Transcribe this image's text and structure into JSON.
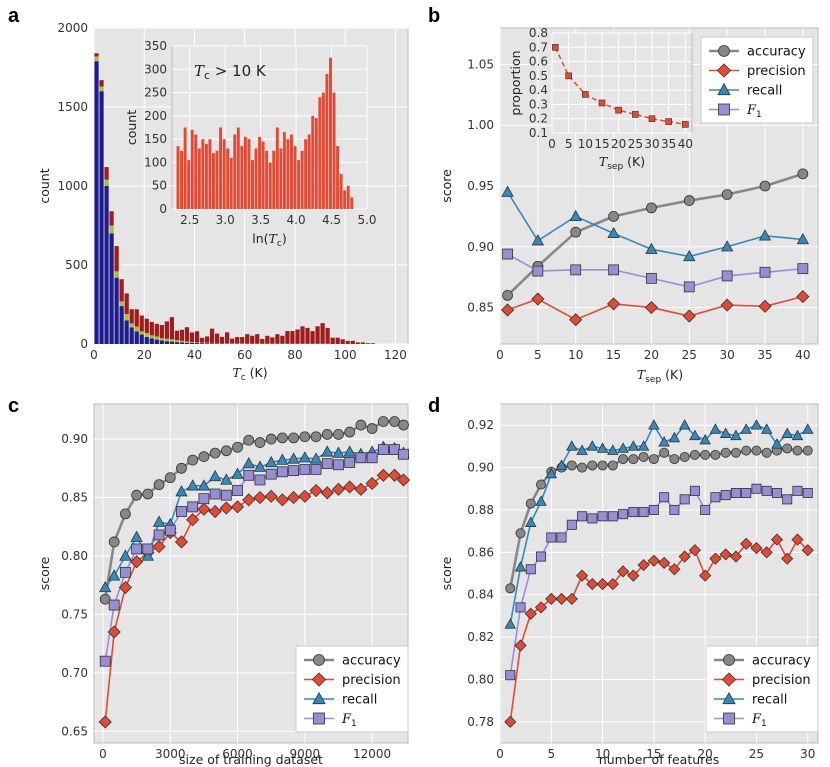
{
  "figure": {
    "panel_labels": [
      "a",
      "b",
      "c",
      "d"
    ]
  },
  "colors": {
    "accuracy": "#878787",
    "precision": "#e24a33",
    "recall": "#348abd",
    "f1": "#988ed5",
    "hist_blue": "#1d1d8f",
    "hist_green": "#a3c339",
    "hist_red": "#a01c1c",
    "inset_hist": "#e24a33",
    "bg": "#e5e5e5"
  },
  "chart_data": [
    {
      "id": "a",
      "type": "bar",
      "stacked": true,
      "xlabel_sym": "T",
      "xlabel_sub": "c",
      "xlabel_unit": " (K)",
      "ylabel": "count",
      "xlim": [
        0,
        125
      ],
      "ylim": [
        0,
        2000
      ],
      "xticks": [
        0,
        20,
        40,
        60,
        80,
        100,
        120
      ],
      "yticks": [
        0,
        500,
        1000,
        1500,
        2000
      ],
      "bin_width": 2,
      "bin_starts": [
        0,
        2,
        4,
        6,
        8,
        10,
        12,
        14,
        16,
        18,
        20,
        22,
        24,
        26,
        28,
        30,
        32,
        34,
        36,
        38,
        40,
        42,
        44,
        46,
        48,
        50,
        52,
        54,
        56,
        58,
        60,
        62,
        64,
        66,
        68,
        70,
        72,
        74,
        76,
        78,
        80,
        82,
        84,
        86,
        88,
        90,
        92,
        94,
        96,
        98,
        100,
        102,
        104,
        106,
        108,
        110
      ],
      "series": [
        {
          "name": "blue",
          "values": [
            1790,
            1600,
            1000,
            700,
            420,
            240,
            150,
            105,
            80,
            60,
            45,
            35,
            28,
            22,
            18,
            15,
            12,
            10,
            8,
            7,
            6,
            5,
            4,
            4,
            3,
            3,
            2,
            2,
            2,
            2,
            1,
            1,
            1,
            1,
            1,
            1,
            1,
            1,
            1,
            1,
            1,
            1,
            1,
            1,
            1,
            1,
            1,
            0,
            0,
            0,
            0,
            0,
            0,
            0,
            0,
            0
          ]
        },
        {
          "name": "green",
          "values": [
            30,
            30,
            40,
            50,
            40,
            30,
            40,
            25,
            30,
            20,
            25,
            20,
            20,
            15,
            15,
            15,
            12,
            10,
            8,
            6,
            5,
            4,
            4,
            3,
            3,
            2,
            2,
            2,
            2,
            2,
            1,
            1,
            1,
            1,
            1,
            1,
            1,
            1,
            1,
            1,
            1,
            1,
            1,
            1,
            1,
            1,
            1,
            0,
            0,
            0,
            0,
            0,
            0,
            0,
            0,
            0
          ]
        },
        {
          "name": "red",
          "values": [
            20,
            40,
            80,
            90,
            160,
            140,
            130,
            90,
            110,
            100,
            90,
            85,
            80,
            83,
            110,
            140,
            60,
            70,
            90,
            60,
            70,
            30,
            40,
            90,
            60,
            40,
            70,
            30,
            40,
            40,
            60,
            50,
            60,
            30,
            50,
            40,
            60,
            50,
            80,
            80,
            90,
            110,
            100,
            80,
            110,
            130,
            100,
            40,
            40,
            30,
            20,
            20,
            10,
            10,
            5,
            5
          ]
        }
      ],
      "inset": {
        "type": "bar",
        "title": "T_c > 10 K",
        "title_sym": "T",
        "title_sub": "c",
        "title_rest": " > 10 K",
        "xlabel": "ln(T_c)",
        "xlabel_pre": "ln(",
        "xlabel_sym": "T",
        "xlabel_sub": "c",
        "xlabel_post": ")",
        "ylabel": "count",
        "xlim": [
          2.25,
          5.0
        ],
        "ylim": [
          0,
          350
        ],
        "xticks": [
          "2.5",
          "3.0",
          "3.5",
          "4.0",
          "4.5",
          "5.0"
        ],
        "yticks": [
          0,
          50,
          100,
          150,
          200,
          250,
          300,
          350
        ],
        "bin_start": 2.31,
        "bin_width": 0.05,
        "values": [
          135,
          125,
          175,
          105,
          170,
          160,
          130,
          150,
          140,
          150,
          120,
          125,
          175,
          150,
          130,
          110,
          160,
          175,
          135,
          155,
          150,
          105,
          130,
          155,
          145,
          125,
          100,
          125,
          175,
          130,
          165,
          150,
          160,
          135,
          105,
          125,
          150,
          160,
          200,
          195,
          240,
          250,
          290,
          325,
          250,
          135,
          75,
          40,
          50,
          25
        ]
      }
    },
    {
      "id": "b",
      "type": "line",
      "xlabel_sym": "T",
      "xlabel_sub": "sep",
      "xlabel_unit": " (K)",
      "ylabel": "score",
      "xlim": [
        0,
        42
      ],
      "ylim": [
        0.82,
        1.08
      ],
      "xticks": [
        0,
        5,
        10,
        15,
        20,
        25,
        30,
        35,
        40
      ],
      "yticks": [
        "0.85",
        "0.90",
        "0.95",
        "1.00",
        "1.05"
      ],
      "x": [
        1,
        5,
        10,
        15,
        20,
        25,
        30,
        35,
        40
      ],
      "series": [
        {
          "name": "accuracy",
          "values": [
            0.86,
            0.884,
            0.912,
            0.925,
            0.932,
            0.938,
            0.943,
            0.95,
            0.96
          ]
        },
        {
          "name": "precision",
          "values": [
            0.848,
            0.857,
            0.84,
            0.853,
            0.85,
            0.843,
            0.852,
            0.851,
            0.859
          ]
        },
        {
          "name": "recall",
          "values": [
            0.945,
            0.905,
            0.925,
            0.911,
            0.898,
            0.892,
            0.9,
            0.909,
            0.906
          ]
        },
        {
          "name": "F1",
          "values": [
            0.894,
            0.88,
            0.881,
            0.881,
            0.874,
            0.867,
            0.876,
            0.879,
            0.882
          ]
        }
      ],
      "legend": [
        "accuracy",
        "precision",
        "recall",
        "F1"
      ],
      "legend_position": "top-right",
      "inset": {
        "type": "line",
        "xlabel_sym": "T",
        "xlabel_sub": "sep",
        "xlabel_unit": " (K)",
        "ylabel": "proportion",
        "xlim": [
          0,
          42
        ],
        "ylim": [
          0.1,
          0.8
        ],
        "xticks": [
          "0",
          "5",
          "10",
          "15",
          "20",
          "25",
          "30",
          "35",
          "40"
        ],
        "yticks": [
          "0.1",
          "0.2",
          "0.3",
          "0.4",
          "0.5",
          "0.6",
          "0.7",
          "0.8"
        ],
        "x": [
          1,
          5,
          10,
          15,
          20,
          25,
          30,
          35,
          40
        ],
        "values": [
          0.7,
          0.5,
          0.37,
          0.31,
          0.26,
          0.23,
          0.2,
          0.18,
          0.16
        ]
      }
    },
    {
      "id": "c",
      "type": "line",
      "xlabel": "size of training dataset",
      "ylabel": "score",
      "xlim": [
        -400,
        13600
      ],
      "ylim": [
        0.64,
        0.93
      ],
      "xticks": [
        "0",
        "3000",
        "6000",
        "9000",
        "12000"
      ],
      "yticks": [
        "0.65",
        "0.70",
        "0.75",
        "0.80",
        "0.85",
        "0.90"
      ],
      "x": [
        100,
        500,
        1000,
        1500,
        2000,
        2500,
        3000,
        3500,
        4000,
        4500,
        5000,
        5500,
        6000,
        6500,
        7000,
        7500,
        8000,
        8500,
        9000,
        9500,
        10000,
        10500,
        11000,
        11500,
        12000,
        12500,
        13000,
        13400
      ],
      "series": [
        {
          "name": "accuracy",
          "values": [
            0.763,
            0.812,
            0.836,
            0.852,
            0.853,
            0.861,
            0.867,
            0.875,
            0.882,
            0.885,
            0.888,
            0.89,
            0.893,
            0.899,
            0.897,
            0.9,
            0.901,
            0.901,
            0.902,
            0.902,
            0.904,
            0.904,
            0.906,
            0.912,
            0.909,
            0.915,
            0.915,
            0.912
          ]
        },
        {
          "name": "precision",
          "values": [
            0.658,
            0.735,
            0.773,
            0.795,
            0.803,
            0.808,
            0.82,
            0.812,
            0.831,
            0.84,
            0.838,
            0.841,
            0.842,
            0.848,
            0.85,
            0.851,
            0.848,
            0.85,
            0.851,
            0.856,
            0.854,
            0.857,
            0.859,
            0.857,
            0.862,
            0.869,
            0.869,
            0.865
          ]
        },
        {
          "name": "recall",
          "values": [
            0.773,
            0.783,
            0.8,
            0.816,
            0.8,
            0.829,
            0.827,
            0.855,
            0.86,
            0.86,
            0.868,
            0.865,
            0.87,
            0.879,
            0.876,
            0.88,
            0.882,
            0.883,
            0.884,
            0.883,
            0.889,
            0.888,
            0.889,
            0.887,
            0.889,
            0.893,
            0.892,
            0.888
          ]
        },
        {
          "name": "F1",
          "values": [
            0.71,
            0.758,
            0.786,
            0.806,
            0.806,
            0.818,
            0.822,
            0.838,
            0.842,
            0.849,
            0.853,
            0.852,
            0.856,
            0.869,
            0.865,
            0.87,
            0.872,
            0.873,
            0.874,
            0.874,
            0.879,
            0.878,
            0.88,
            0.884,
            0.884,
            0.891,
            0.891,
            0.887
          ]
        }
      ],
      "legend": [
        "accuracy",
        "precision",
        "recall",
        "F1"
      ],
      "legend_position": "bottom-right"
    },
    {
      "id": "d",
      "type": "line",
      "xlabel": "number of features",
      "ylabel": "score",
      "xlim": [
        0,
        31
      ],
      "ylim": [
        0.77,
        0.93
      ],
      "xticks": [
        "0",
        "5",
        "10",
        "15",
        "20",
        "25",
        "30"
      ],
      "yticks": [
        "0.78",
        "0.80",
        "0.82",
        "0.84",
        "0.86",
        "0.88",
        "0.90",
        "0.92"
      ],
      "x": [
        1,
        2,
        3,
        4,
        5,
        6,
        7,
        8,
        9,
        10,
        11,
        12,
        13,
        14,
        15,
        16,
        17,
        18,
        19,
        20,
        21,
        22,
        23,
        24,
        25,
        26,
        27,
        28,
        29,
        30
      ],
      "series": [
        {
          "name": "accuracy",
          "values": [
            0.843,
            0.869,
            0.883,
            0.892,
            0.898,
            0.9,
            0.901,
            0.9,
            0.901,
            0.901,
            0.901,
            0.904,
            0.904,
            0.905,
            0.904,
            0.907,
            0.904,
            0.905,
            0.906,
            0.906,
            0.906,
            0.907,
            0.907,
            0.908,
            0.908,
            0.907,
            0.908,
            0.909,
            0.908,
            0.908
          ]
        },
        {
          "name": "precision",
          "values": [
            0.78,
            0.816,
            0.831,
            0.834,
            0.838,
            0.838,
            0.838,
            0.849,
            0.845,
            0.845,
            0.845,
            0.851,
            0.849,
            0.854,
            0.856,
            0.855,
            0.852,
            0.858,
            0.861,
            0.849,
            0.857,
            0.859,
            0.858,
            0.864,
            0.862,
            0.86,
            0.866,
            0.857,
            0.866,
            0.861
          ]
        },
        {
          "name": "recall",
          "values": [
            0.826,
            0.853,
            0.874,
            0.884,
            0.897,
            0.901,
            0.91,
            0.908,
            0.91,
            0.909,
            0.908,
            0.909,
            0.91,
            0.91,
            0.92,
            0.912,
            0.914,
            0.92,
            0.915,
            0.913,
            0.918,
            0.916,
            0.915,
            0.918,
            0.92,
            0.918,
            0.911,
            0.916,
            0.915,
            0.918
          ]
        },
        {
          "name": "F1",
          "values": [
            0.802,
            0.834,
            0.852,
            0.858,
            0.867,
            0.867,
            0.873,
            0.877,
            0.876,
            0.877,
            0.877,
            0.878,
            0.879,
            0.879,
            0.88,
            0.886,
            0.88,
            0.885,
            0.889,
            0.88,
            0.886,
            0.887,
            0.888,
            0.888,
            0.89,
            0.889,
            0.888,
            0.885,
            0.889,
            0.888
          ]
        }
      ],
      "legend": [
        "accuracy",
        "precision",
        "recall",
        "F1"
      ],
      "legend_position": "bottom-right"
    }
  ]
}
